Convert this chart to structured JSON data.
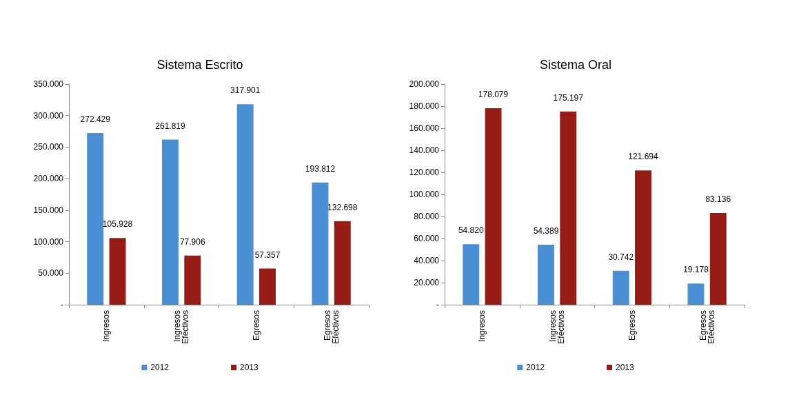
{
  "chart_data": [
    {
      "type": "bar",
      "title": "Sistema Escrito",
      "categories": [
        "Ingresos",
        "Ingresos Efectivos",
        "Egresos",
        "Egresos Efectivos"
      ],
      "series": [
        {
          "name": "2012",
          "color": "#4a8fd3",
          "values": [
            272429,
            261819,
            317901,
            193812
          ],
          "value_labels": [
            "272.429",
            "261.819",
            "317.901",
            "193.812"
          ]
        },
        {
          "name": "2013",
          "color": "#961c15",
          "values": [
            105928,
            77906,
            57357,
            132698
          ],
          "value_labels": [
            "105.928",
            "77.906",
            "57.357",
            "132.698"
          ]
        }
      ],
      "ylim": [
        0,
        350000
      ],
      "yticks": [
        {
          "value": 0,
          "label": "-"
        },
        {
          "value": 50000,
          "label": "50.000"
        },
        {
          "value": 100000,
          "label": "100.000"
        },
        {
          "value": 150000,
          "label": "150.000"
        },
        {
          "value": 200000,
          "label": "200.000"
        },
        {
          "value": 250000,
          "label": "250.000"
        },
        {
          "value": 300000,
          "label": "300.000"
        },
        {
          "value": 350000,
          "label": "350.000"
        }
      ],
      "grid": false,
      "legend": "bottom"
    },
    {
      "type": "bar",
      "title": "Sistema Oral",
      "categories": [
        "Ingresos",
        "Ingresos Efectivos",
        "Egresos",
        "Egresos Efectivos"
      ],
      "series": [
        {
          "name": "2012",
          "color": "#4a8fd3",
          "values": [
            54820,
            54389,
            30742,
            19178
          ],
          "value_labels": [
            "54.820",
            "54.389",
            "30.742",
            "19.178"
          ]
        },
        {
          "name": "2013",
          "color": "#961c15",
          "values": [
            178079,
            175197,
            121694,
            83136
          ],
          "value_labels": [
            "178.079",
            "175.197",
            "121.694",
            "83.136"
          ]
        }
      ],
      "ylim": [
        0,
        200000
      ],
      "yticks": [
        {
          "value": 0,
          "label": "-"
        },
        {
          "value": 20000,
          "label": "20.000"
        },
        {
          "value": 40000,
          "label": "40.000"
        },
        {
          "value": 60000,
          "label": "60.000"
        },
        {
          "value": 80000,
          "label": "80.000"
        },
        {
          "value": 100000,
          "label": "100.000"
        },
        {
          "value": 120000,
          "label": "120.000"
        },
        {
          "value": 140000,
          "label": "140.000"
        },
        {
          "value": 160000,
          "label": "160.000"
        },
        {
          "value": 180000,
          "label": "180.000"
        },
        {
          "value": 200000,
          "label": "200.000"
        }
      ],
      "grid": false,
      "legend": "bottom"
    }
  ]
}
